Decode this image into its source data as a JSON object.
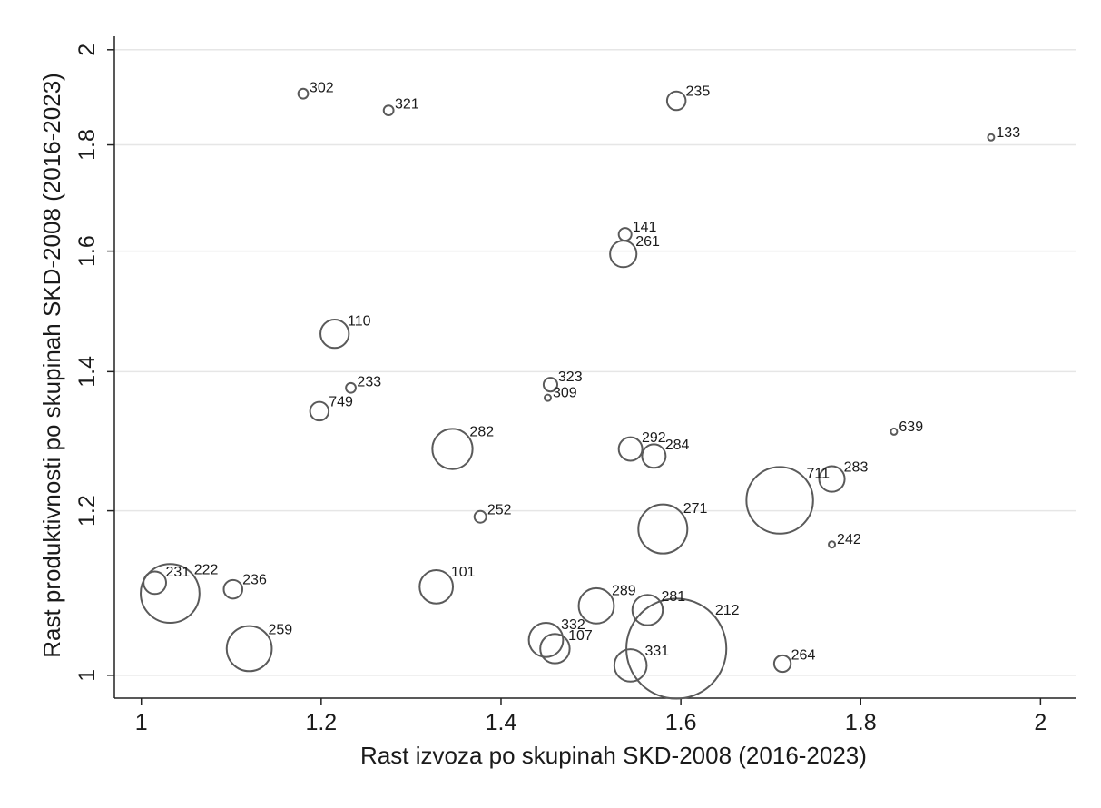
{
  "chart_data": {
    "type": "scatter",
    "title": "",
    "xlabel": "Rast izvoza po skupinah SKD-2008 (2016-2023)",
    "ylabel": "Rast produktivnosti po skupinah SKD-2008 (2016-2023)",
    "xlim": [
      0.97,
      2.04
    ],
    "ylim": [
      0.975,
      2.03
    ],
    "y_scale": "log",
    "x_ticks": [
      1,
      1.2,
      1.4,
      1.6,
      1.8,
      2
    ],
    "x_tick_labels": [
      "1",
      "1.2",
      "1.4",
      "1.6",
      "1.8",
      "2"
    ],
    "y_ticks": [
      1,
      1.2,
      1.4,
      1.6,
      1.8,
      2
    ],
    "y_tick_labels": [
      "1",
      "1.2",
      "1.4",
      "1.6",
      "1.8",
      "2"
    ],
    "grid": "horizontal",
    "marker": "hollow circle, size weighted",
    "marker_color": "#5a5a5a",
    "points": [
      {
        "label": "302",
        "x": 1.18,
        "y": 1.905,
        "r": 1.0
      },
      {
        "label": "321",
        "x": 1.275,
        "y": 1.87,
        "r": 1.0
      },
      {
        "label": "235",
        "x": 1.595,
        "y": 1.89,
        "r": 1.9
      },
      {
        "label": "133",
        "x": 1.945,
        "y": 1.815,
        "r": 0.5
      },
      {
        "label": "141",
        "x": 1.538,
        "y": 1.63,
        "r": 1.3
      },
      {
        "label": "261",
        "x": 1.536,
        "y": 1.595,
        "r": 2.7
      },
      {
        "label": "110",
        "x": 1.215,
        "y": 1.46,
        "r": 2.9
      },
      {
        "label": "233",
        "x": 1.233,
        "y": 1.375,
        "r": 1.0
      },
      {
        "label": "323",
        "x": 1.455,
        "y": 1.38,
        "r": 1.4
      },
      {
        "label": "309",
        "x": 1.452,
        "y": 1.36,
        "r": 0.6
      },
      {
        "label": "749",
        "x": 1.198,
        "y": 1.34,
        "r": 1.9
      },
      {
        "label": "282",
        "x": 1.346,
        "y": 1.285,
        "r": 4.1
      },
      {
        "label": "292",
        "x": 1.544,
        "y": 1.285,
        "r": 2.4
      },
      {
        "label": "284",
        "x": 1.57,
        "y": 1.275,
        "r": 2.4
      },
      {
        "label": "639",
        "x": 1.837,
        "y": 1.31,
        "r": 0.5
      },
      {
        "label": "283",
        "x": 1.768,
        "y": 1.243,
        "r": 2.6
      },
      {
        "label": "711",
        "x": 1.71,
        "y": 1.214,
        "r": 6.8
      },
      {
        "label": "252",
        "x": 1.377,
        "y": 1.192,
        "r": 1.2
      },
      {
        "label": "271",
        "x": 1.58,
        "y": 1.176,
        "r": 5.0
      },
      {
        "label": "242",
        "x": 1.768,
        "y": 1.156,
        "r": 0.6
      },
      {
        "label": "231",
        "x": 1.015,
        "y": 1.108,
        "r": 2.3
      },
      {
        "label": "222",
        "x": 1.032,
        "y": 1.095,
        "r": 6.0
      },
      {
        "label": "236",
        "x": 1.102,
        "y": 1.1,
        "r": 1.9
      },
      {
        "label": "101",
        "x": 1.328,
        "y": 1.103,
        "r": 3.4
      },
      {
        "label": "289",
        "x": 1.506,
        "y": 1.08,
        "r": 3.6
      },
      {
        "label": "281",
        "x": 1.563,
        "y": 1.075,
        "r": 3.1
      },
      {
        "label": "332",
        "x": 1.45,
        "y": 1.04,
        "r": 3.5
      },
      {
        "label": "107",
        "x": 1.46,
        "y": 1.03,
        "r": 3.0
      },
      {
        "label": "259",
        "x": 1.12,
        "y": 1.03,
        "r": 4.6
      },
      {
        "label": "212",
        "x": 1.595,
        "y": 1.03,
        "r": 10.2
      },
      {
        "label": "331",
        "x": 1.544,
        "y": 1.011,
        "r": 3.3
      },
      {
        "label": "264",
        "x": 1.713,
        "y": 1.013,
        "r": 1.7
      }
    ]
  }
}
